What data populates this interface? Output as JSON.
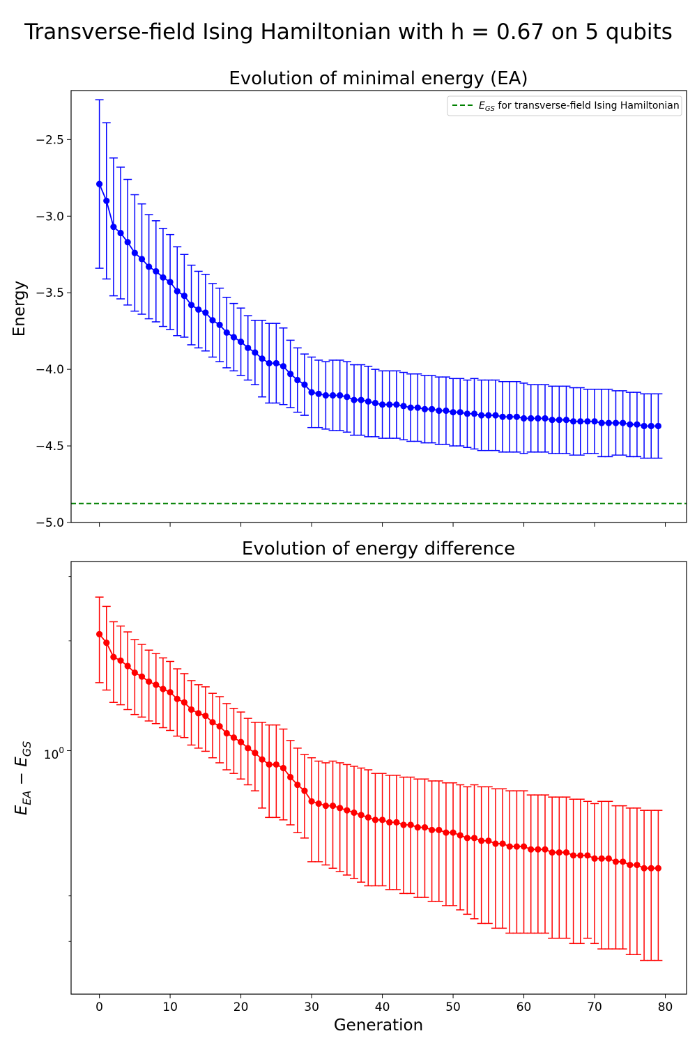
{
  "figure": {
    "suptitle": "Transverse-field Ising Hamiltonian with h = 0.67 on 5 qubits"
  },
  "chart_data": [
    {
      "type": "line",
      "title": "Evolution of minimal energy (EA)",
      "xlabel": "",
      "ylabel": "Energy",
      "xlim": [
        -4,
        83
      ],
      "ylim": [
        -5.0,
        -2.18
      ],
      "xticks": [
        0,
        10,
        20,
        30,
        40,
        50,
        60,
        70,
        80
      ],
      "yticks": [
        -5.0,
        -4.5,
        -4.0,
        -3.5,
        -3.0,
        -2.5
      ],
      "ytick_labels": [
        "−5.0",
        "−4.5",
        "−4.0",
        "−3.5",
        "−3.0",
        "−2.5"
      ],
      "show_xtick_labels": false,
      "grid": false,
      "legend": {
        "position": "top-right",
        "label_math": "E",
        "label_sub": "GS",
        "label_rest": " for transverse-field Ising Hamiltonian"
      },
      "reference_line": {
        "y": -4.876,
        "color": "#008000",
        "style": "dashed"
      },
      "series": [
        {
          "color": "#0000ff",
          "x": [
            0,
            1,
            2,
            3,
            4,
            5,
            6,
            7,
            8,
            9,
            10,
            11,
            12,
            13,
            14,
            15,
            16,
            17,
            18,
            19,
            20,
            21,
            22,
            23,
            24,
            25,
            26,
            27,
            28,
            29,
            30,
            31,
            32,
            33,
            34,
            35,
            36,
            37,
            38,
            39,
            40,
            41,
            42,
            43,
            44,
            45,
            46,
            47,
            48,
            49,
            50,
            51,
            52,
            53,
            54,
            55,
            56,
            57,
            58,
            59,
            60,
            61,
            62,
            63,
            64,
            65,
            66,
            67,
            68,
            69,
            70,
            71,
            72,
            73,
            74,
            75,
            76,
            77,
            78,
            79
          ],
          "y": [
            -2.79,
            -2.9,
            -3.07,
            -3.11,
            -3.17,
            -3.24,
            -3.28,
            -3.33,
            -3.36,
            -3.4,
            -3.43,
            -3.49,
            -3.52,
            -3.58,
            -3.61,
            -3.63,
            -3.68,
            -3.71,
            -3.76,
            -3.79,
            -3.82,
            -3.86,
            -3.89,
            -3.93,
            -3.96,
            -3.96,
            -3.98,
            -4.03,
            -4.07,
            -4.1,
            -4.15,
            -4.16,
            -4.17,
            -4.17,
            -4.17,
            -4.18,
            -4.2,
            -4.2,
            -4.21,
            -4.22,
            -4.23,
            -4.23,
            -4.23,
            -4.24,
            -4.25,
            -4.25,
            -4.26,
            -4.26,
            -4.27,
            -4.27,
            -4.28,
            -4.28,
            -4.29,
            -4.29,
            -4.3,
            -4.3,
            -4.3,
            -4.31,
            -4.31,
            -4.31,
            -4.32,
            -4.32,
            -4.32,
            -4.32,
            -4.33,
            -4.33,
            -4.33,
            -4.34,
            -4.34,
            -4.34,
            -4.34,
            -4.35,
            -4.35,
            -4.35,
            -4.35,
            -4.36,
            -4.36,
            -4.37,
            -4.37,
            -4.37
          ],
          "err": [
            0.55,
            0.51,
            0.45,
            0.43,
            0.41,
            0.38,
            0.36,
            0.34,
            0.33,
            0.32,
            0.31,
            0.29,
            0.27,
            0.26,
            0.25,
            0.25,
            0.24,
            0.24,
            0.23,
            0.22,
            0.22,
            0.21,
            0.21,
            0.25,
            0.26,
            0.26,
            0.25,
            0.22,
            0.21,
            0.2,
            0.23,
            0.22,
            0.22,
            0.23,
            0.23,
            0.23,
            0.23,
            0.23,
            0.23,
            0.22,
            0.22,
            0.22,
            0.22,
            0.22,
            0.22,
            0.22,
            0.22,
            0.22,
            0.22,
            0.22,
            0.22,
            0.22,
            0.22,
            0.23,
            0.23,
            0.23,
            0.23,
            0.23,
            0.23,
            0.23,
            0.23,
            0.22,
            0.22,
            0.22,
            0.22,
            0.22,
            0.22,
            0.22,
            0.22,
            0.21,
            0.21,
            0.22,
            0.22,
            0.21,
            0.21,
            0.21,
            0.21,
            0.21,
            0.21,
            0.21
          ]
        }
      ]
    },
    {
      "type": "line",
      "title": "Evolution of energy difference",
      "xlabel": "Generation",
      "ylabel_math": "E",
      "ylabel_sub1": "EA",
      "ylabel_mid": " − E",
      "ylabel_sub2": "GS",
      "yscale": "log",
      "xlim": [
        -4,
        83
      ],
      "ylim": [
        0.215,
        3.3
      ],
      "xticks": [
        0,
        10,
        20,
        30,
        40,
        50,
        60,
        70,
        80
      ],
      "xtick_labels": [
        "0",
        "10",
        "20",
        "30",
        "40",
        "50",
        "60",
        "70",
        "80"
      ],
      "major_ytick": {
        "value": 1.0,
        "label_base": "10",
        "label_exp": "0"
      },
      "minor_yticks": [
        0.3,
        0.4,
        2.0,
        3.0
      ],
      "grid": false,
      "series": [
        {
          "color": "#ff0000",
          "x": [
            0,
            1,
            2,
            3,
            4,
            5,
            6,
            7,
            8,
            9,
            10,
            11,
            12,
            13,
            14,
            15,
            16,
            17,
            18,
            19,
            20,
            21,
            22,
            23,
            24,
            25,
            26,
            27,
            28,
            29,
            30,
            31,
            32,
            33,
            34,
            35,
            36,
            37,
            38,
            39,
            40,
            41,
            42,
            43,
            44,
            45,
            46,
            47,
            48,
            49,
            50,
            51,
            52,
            53,
            54,
            55,
            56,
            57,
            58,
            59,
            60,
            61,
            62,
            63,
            64,
            65,
            66,
            67,
            68,
            69,
            70,
            71,
            72,
            73,
            74,
            75,
            76,
            77,
            78,
            79
          ],
          "y": [
            2.086,
            1.976,
            1.806,
            1.766,
            1.706,
            1.636,
            1.596,
            1.546,
            1.516,
            1.476,
            1.446,
            1.386,
            1.356,
            1.296,
            1.266,
            1.246,
            1.196,
            1.166,
            1.116,
            1.086,
            1.056,
            1.016,
            0.986,
            0.946,
            0.916,
            0.916,
            0.896,
            0.846,
            0.806,
            0.776,
            0.726,
            0.716,
            0.706,
            0.706,
            0.696,
            0.686,
            0.676,
            0.666,
            0.656,
            0.646,
            0.646,
            0.636,
            0.636,
            0.626,
            0.626,
            0.616,
            0.616,
            0.606,
            0.606,
            0.596,
            0.596,
            0.586,
            0.576,
            0.576,
            0.566,
            0.566,
            0.556,
            0.556,
            0.546,
            0.546,
            0.546,
            0.536,
            0.536,
            0.536,
            0.526,
            0.526,
            0.526,
            0.516,
            0.516,
            0.516,
            0.506,
            0.506,
            0.506,
            0.496,
            0.496,
            0.486,
            0.486,
            0.476,
            0.476,
            0.476
          ],
          "err": [
            0.55,
            0.51,
            0.45,
            0.43,
            0.41,
            0.38,
            0.36,
            0.34,
            0.33,
            0.32,
            0.31,
            0.29,
            0.27,
            0.26,
            0.25,
            0.25,
            0.24,
            0.24,
            0.23,
            0.22,
            0.22,
            0.21,
            0.21,
            0.25,
            0.26,
            0.26,
            0.25,
            0.22,
            0.21,
            0.2,
            0.23,
            0.22,
            0.22,
            0.23,
            0.23,
            0.23,
            0.23,
            0.23,
            0.23,
            0.22,
            0.22,
            0.22,
            0.22,
            0.22,
            0.22,
            0.22,
            0.22,
            0.22,
            0.22,
            0.22,
            0.22,
            0.22,
            0.22,
            0.23,
            0.23,
            0.23,
            0.23,
            0.23,
            0.23,
            0.23,
            0.23,
            0.22,
            0.22,
            0.22,
            0.22,
            0.22,
            0.22,
            0.22,
            0.22,
            0.21,
            0.21,
            0.22,
            0.22,
            0.21,
            0.21,
            0.21,
            0.21,
            0.21,
            0.21,
            0.21
          ]
        }
      ]
    }
  ]
}
